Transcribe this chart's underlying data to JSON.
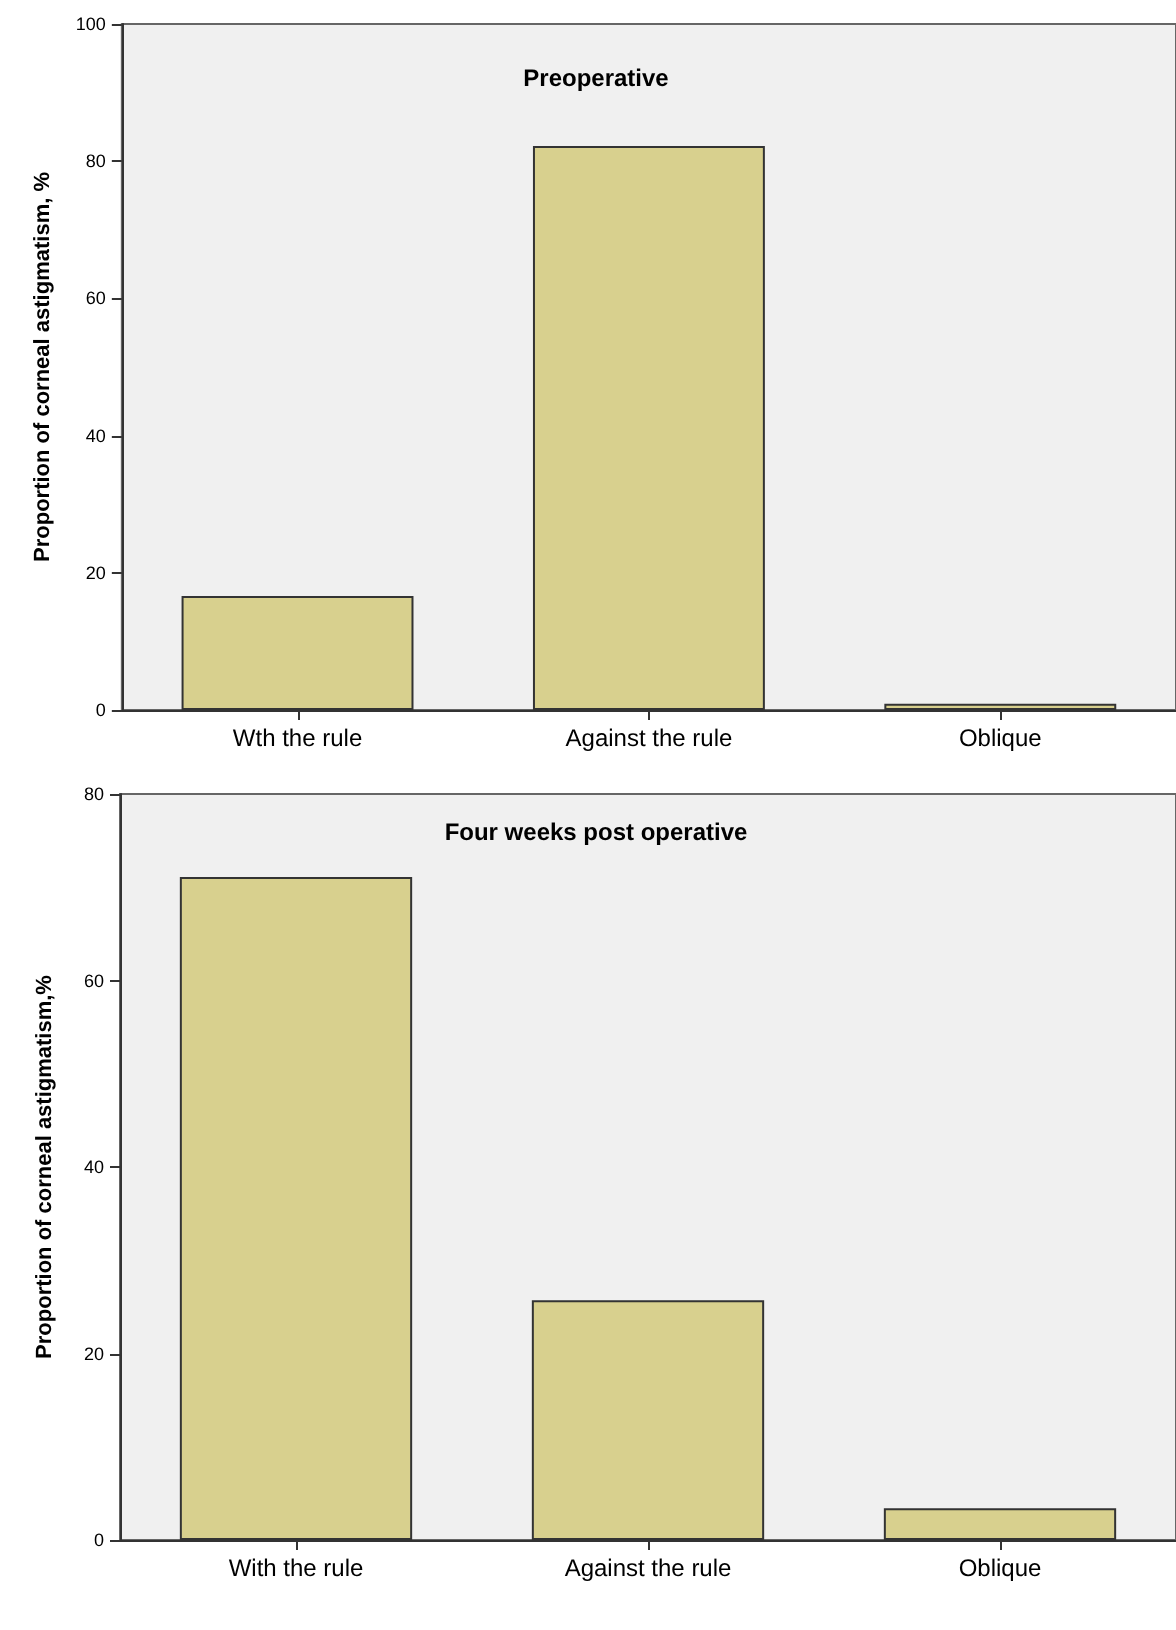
{
  "chart_data": [
    {
      "type": "bar",
      "title": "Preoperative",
      "ylabel": "Proportion of corneal astigmatism, %",
      "categories": [
        "Wth the rule",
        "Against the rule",
        "Oblique"
      ],
      "values": [
        16.6,
        82.2,
        0.9
      ],
      "color": "#d8d08e",
      "ylim": [
        0,
        100
      ],
      "yticks": [
        0,
        20,
        40,
        60,
        80,
        100
      ],
      "grid": false
    },
    {
      "type": "bar",
      "title": "Four weeks post operative",
      "ylabel": "Proportion of corneal astigmatism,%",
      "categories": [
        "With the rule",
        "Against the rule",
        "Oblique"
      ],
      "values": [
        71.1,
        25.7,
        3.4
      ],
      "color": "#d8d08e",
      "ylim": [
        0,
        80
      ],
      "yticks": [
        0,
        20,
        40,
        60,
        80
      ],
      "grid": false
    }
  ]
}
